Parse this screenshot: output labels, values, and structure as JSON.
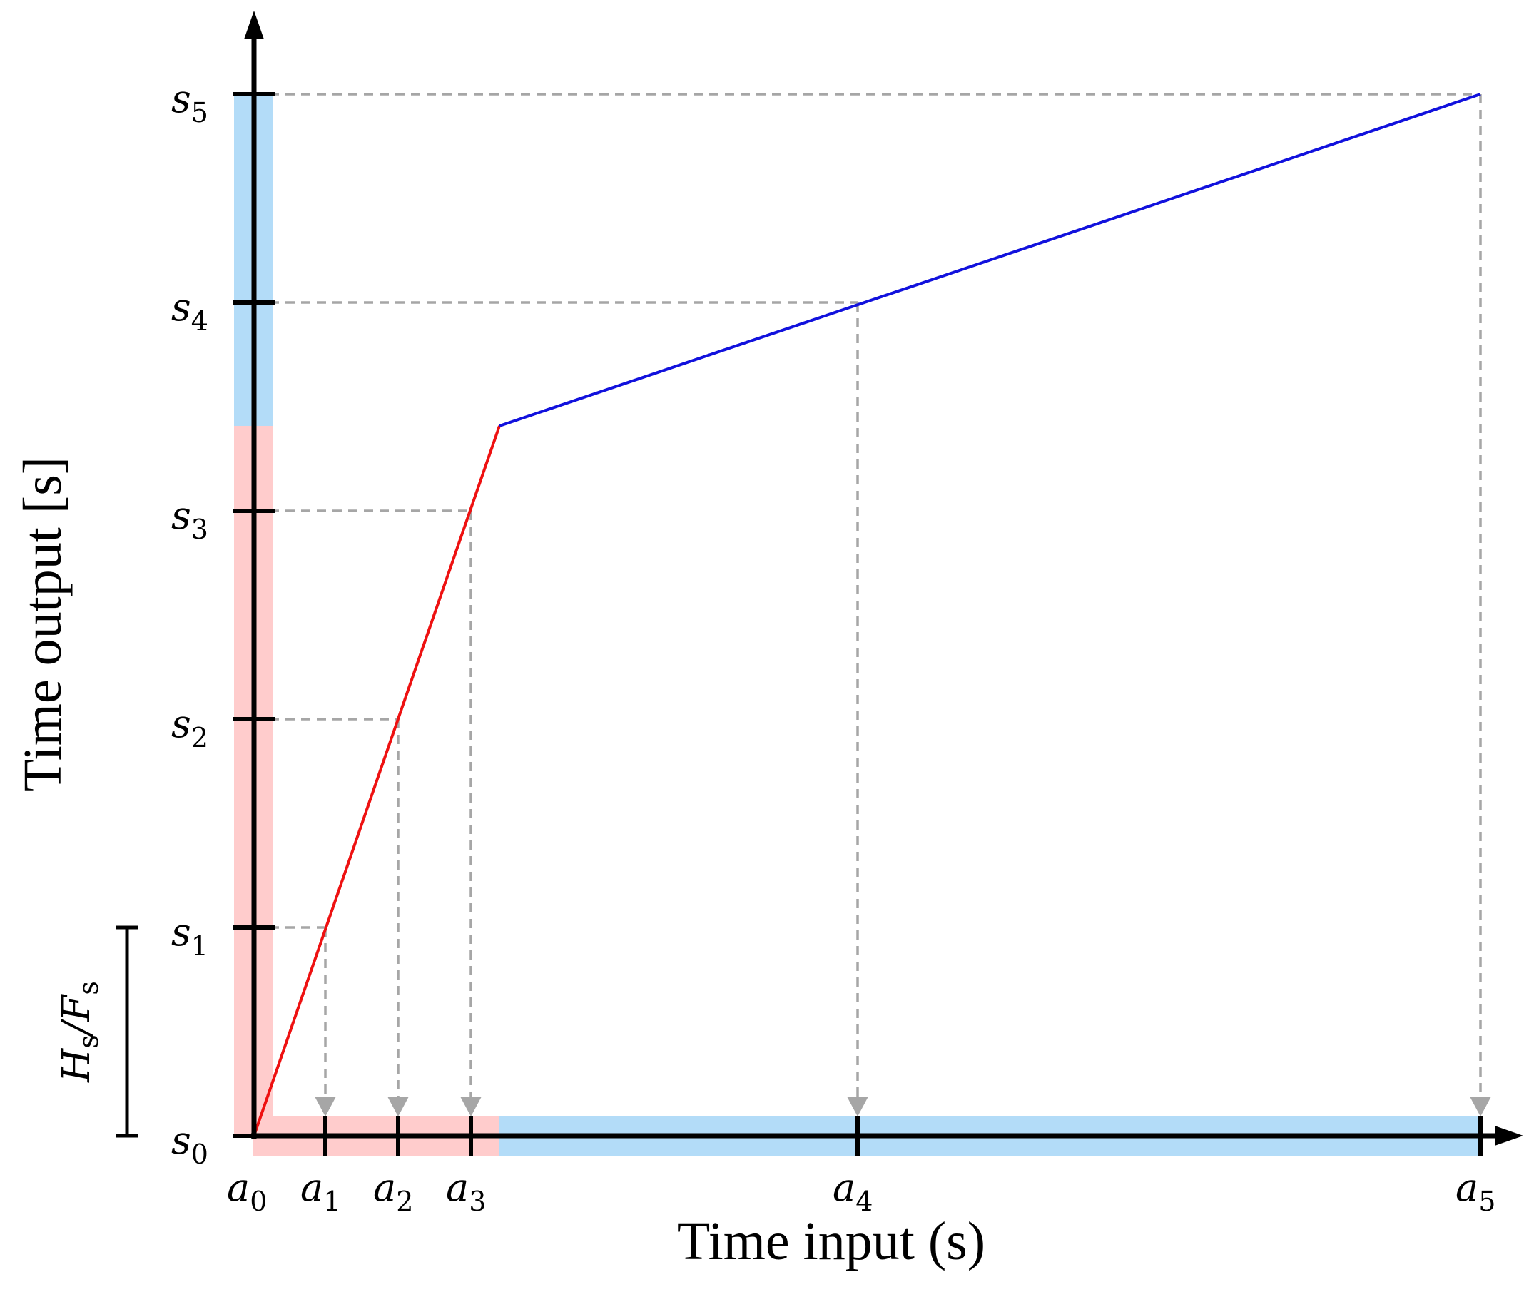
{
  "axes": {
    "x_title": "Time input (s)",
    "y_title": "Time output [s]"
  },
  "x_ticks": [
    {
      "base": "a",
      "sub": "0"
    },
    {
      "base": "a",
      "sub": "1"
    },
    {
      "base": "a",
      "sub": "2"
    },
    {
      "base": "a",
      "sub": "3"
    },
    {
      "base": "a",
      "sub": "4"
    },
    {
      "base": "a",
      "sub": "5"
    }
  ],
  "y_ticks": [
    {
      "base": "s",
      "sub": "0"
    },
    {
      "base": "s",
      "sub": "1"
    },
    {
      "base": "s",
      "sub": "2"
    },
    {
      "base": "s",
      "sub": "3"
    },
    {
      "base": "s",
      "sub": "4"
    },
    {
      "base": "s",
      "sub": "5"
    }
  ],
  "bracket": {
    "numerator": "H",
    "numerator_sub": "s",
    "slash": "/",
    "denominator": "F",
    "denominator_sub": "s"
  },
  "colors": {
    "segment_1": "#ee1111",
    "segment_2": "#1111dd",
    "band_1": "#ffcccc",
    "band_2": "#b3dcf8",
    "guide": "#a6a6a6",
    "axis": "#000000"
  }
}
